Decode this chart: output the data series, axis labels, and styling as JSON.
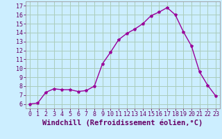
{
  "hours": [
    0,
    1,
    2,
    3,
    4,
    5,
    6,
    7,
    8,
    9,
    10,
    11,
    12,
    13,
    14,
    15,
    16,
    17,
    18,
    19,
    20,
    21,
    22,
    23
  ],
  "values": [
    6.0,
    6.1,
    7.3,
    7.7,
    7.6,
    7.6,
    7.4,
    7.5,
    8.0,
    10.5,
    11.8,
    13.2,
    13.9,
    14.4,
    15.0,
    15.9,
    16.3,
    16.8,
    16.0,
    14.1,
    12.5,
    9.6,
    8.1,
    6.9
  ],
  "line_color": "#990099",
  "marker": "*",
  "marker_size": 3,
  "bg_color": "#cceeff",
  "grid_color": "#aaccbb",
  "xlabel": "Windchill (Refroidissement éolien,°C)",
  "xlabel_color": "#660066",
  "ylabel_ticks": [
    6,
    7,
    8,
    9,
    10,
    11,
    12,
    13,
    14,
    15,
    16,
    17
  ],
  "xlim": [
    -0.5,
    23.5
  ],
  "ylim": [
    5.5,
    17.5
  ],
  "xtick_labels": [
    "0",
    "1",
    "2",
    "3",
    "4",
    "5",
    "6",
    "7",
    "8",
    "9",
    "10",
    "11",
    "12",
    "13",
    "14",
    "15",
    "16",
    "17",
    "18",
    "19",
    "20",
    "21",
    "22",
    "23"
  ],
  "tick_color": "#660066",
  "tick_fontsize": 6.0,
  "xlabel_fontsize": 7.5
}
